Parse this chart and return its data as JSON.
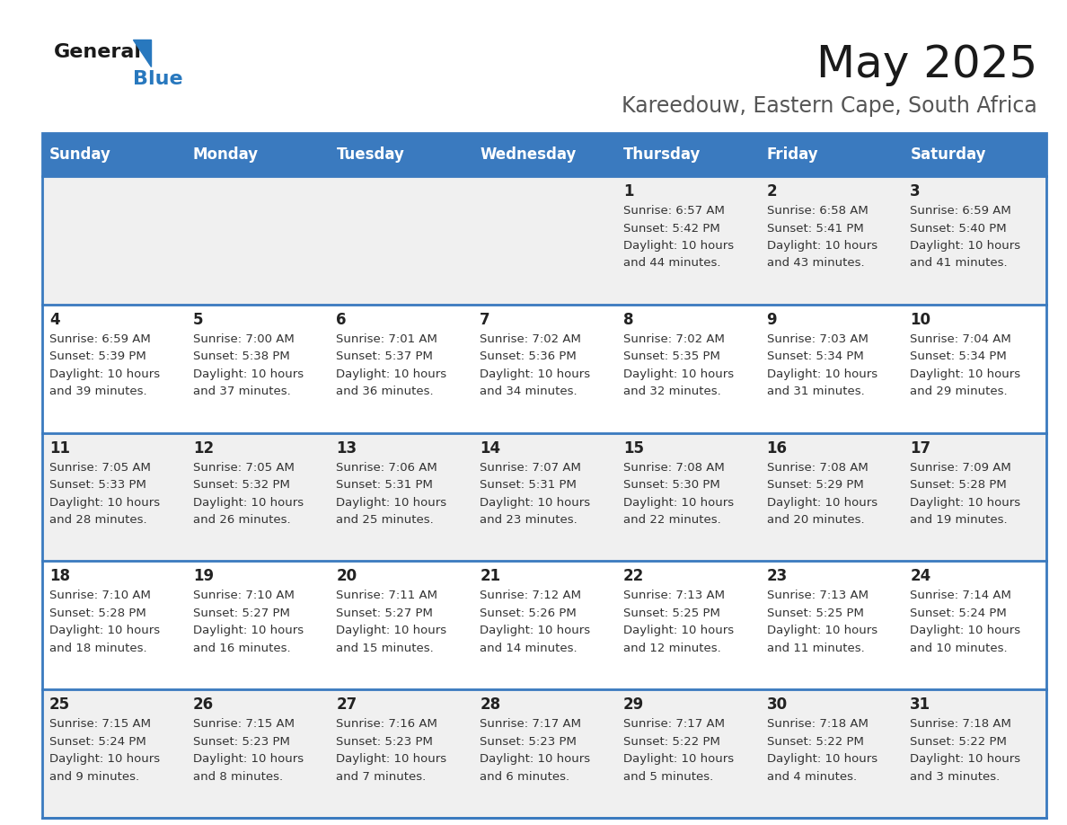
{
  "title": "May 2025",
  "subtitle": "Kareedouw, Eastern Cape, South Africa",
  "days_of_week": [
    "Sunday",
    "Monday",
    "Tuesday",
    "Wednesday",
    "Thursday",
    "Friday",
    "Saturday"
  ],
  "header_bg": "#3a7abf",
  "header_text": "#ffffff",
  "row_bg_odd": "#f0f0f0",
  "row_bg_even": "#ffffff",
  "day_num_color": "#222222",
  "info_color": "#333333",
  "divider_color": "#3a7abf",
  "calendar_data": [
    [
      null,
      null,
      null,
      null,
      {
        "day": 1,
        "sunrise": "6:57 AM",
        "sunset": "5:42 PM",
        "daylight_hrs": 10,
        "daylight_min": 44
      },
      {
        "day": 2,
        "sunrise": "6:58 AM",
        "sunset": "5:41 PM",
        "daylight_hrs": 10,
        "daylight_min": 43
      },
      {
        "day": 3,
        "sunrise": "6:59 AM",
        "sunset": "5:40 PM",
        "daylight_hrs": 10,
        "daylight_min": 41
      }
    ],
    [
      {
        "day": 4,
        "sunrise": "6:59 AM",
        "sunset": "5:39 PM",
        "daylight_hrs": 10,
        "daylight_min": 39
      },
      {
        "day": 5,
        "sunrise": "7:00 AM",
        "sunset": "5:38 PM",
        "daylight_hrs": 10,
        "daylight_min": 37
      },
      {
        "day": 6,
        "sunrise": "7:01 AM",
        "sunset": "5:37 PM",
        "daylight_hrs": 10,
        "daylight_min": 36
      },
      {
        "day": 7,
        "sunrise": "7:02 AM",
        "sunset": "5:36 PM",
        "daylight_hrs": 10,
        "daylight_min": 34
      },
      {
        "day": 8,
        "sunrise": "7:02 AM",
        "sunset": "5:35 PM",
        "daylight_hrs": 10,
        "daylight_min": 32
      },
      {
        "day": 9,
        "sunrise": "7:03 AM",
        "sunset": "5:34 PM",
        "daylight_hrs": 10,
        "daylight_min": 31
      },
      {
        "day": 10,
        "sunrise": "7:04 AM",
        "sunset": "5:34 PM",
        "daylight_hrs": 10,
        "daylight_min": 29
      }
    ],
    [
      {
        "day": 11,
        "sunrise": "7:05 AM",
        "sunset": "5:33 PM",
        "daylight_hrs": 10,
        "daylight_min": 28
      },
      {
        "day": 12,
        "sunrise": "7:05 AM",
        "sunset": "5:32 PM",
        "daylight_hrs": 10,
        "daylight_min": 26
      },
      {
        "day": 13,
        "sunrise": "7:06 AM",
        "sunset": "5:31 PM",
        "daylight_hrs": 10,
        "daylight_min": 25
      },
      {
        "day": 14,
        "sunrise": "7:07 AM",
        "sunset": "5:31 PM",
        "daylight_hrs": 10,
        "daylight_min": 23
      },
      {
        "day": 15,
        "sunrise": "7:08 AM",
        "sunset": "5:30 PM",
        "daylight_hrs": 10,
        "daylight_min": 22
      },
      {
        "day": 16,
        "sunrise": "7:08 AM",
        "sunset": "5:29 PM",
        "daylight_hrs": 10,
        "daylight_min": 20
      },
      {
        "day": 17,
        "sunrise": "7:09 AM",
        "sunset": "5:28 PM",
        "daylight_hrs": 10,
        "daylight_min": 19
      }
    ],
    [
      {
        "day": 18,
        "sunrise": "7:10 AM",
        "sunset": "5:28 PM",
        "daylight_hrs": 10,
        "daylight_min": 18
      },
      {
        "day": 19,
        "sunrise": "7:10 AM",
        "sunset": "5:27 PM",
        "daylight_hrs": 10,
        "daylight_min": 16
      },
      {
        "day": 20,
        "sunrise": "7:11 AM",
        "sunset": "5:27 PM",
        "daylight_hrs": 10,
        "daylight_min": 15
      },
      {
        "day": 21,
        "sunrise": "7:12 AM",
        "sunset": "5:26 PM",
        "daylight_hrs": 10,
        "daylight_min": 14
      },
      {
        "day": 22,
        "sunrise": "7:13 AM",
        "sunset": "5:25 PM",
        "daylight_hrs": 10,
        "daylight_min": 12
      },
      {
        "day": 23,
        "sunrise": "7:13 AM",
        "sunset": "5:25 PM",
        "daylight_hrs": 10,
        "daylight_min": 11
      },
      {
        "day": 24,
        "sunrise": "7:14 AM",
        "sunset": "5:24 PM",
        "daylight_hrs": 10,
        "daylight_min": 10
      }
    ],
    [
      {
        "day": 25,
        "sunrise": "7:15 AM",
        "sunset": "5:24 PM",
        "daylight_hrs": 10,
        "daylight_min": 9
      },
      {
        "day": 26,
        "sunrise": "7:15 AM",
        "sunset": "5:23 PM",
        "daylight_hrs": 10,
        "daylight_min": 8
      },
      {
        "day": 27,
        "sunrise": "7:16 AM",
        "sunset": "5:23 PM",
        "daylight_hrs": 10,
        "daylight_min": 7
      },
      {
        "day": 28,
        "sunrise": "7:17 AM",
        "sunset": "5:23 PM",
        "daylight_hrs": 10,
        "daylight_min": 6
      },
      {
        "day": 29,
        "sunrise": "7:17 AM",
        "sunset": "5:22 PM",
        "daylight_hrs": 10,
        "daylight_min": 5
      },
      {
        "day": 30,
        "sunrise": "7:18 AM",
        "sunset": "5:22 PM",
        "daylight_hrs": 10,
        "daylight_min": 4
      },
      {
        "day": 31,
        "sunrise": "7:18 AM",
        "sunset": "5:22 PM",
        "daylight_hrs": 10,
        "daylight_min": 3
      }
    ]
  ],
  "title_fontsize": 36,
  "subtitle_fontsize": 17,
  "header_fontsize": 12,
  "day_num_fontsize": 12,
  "info_fontsize": 9.5
}
